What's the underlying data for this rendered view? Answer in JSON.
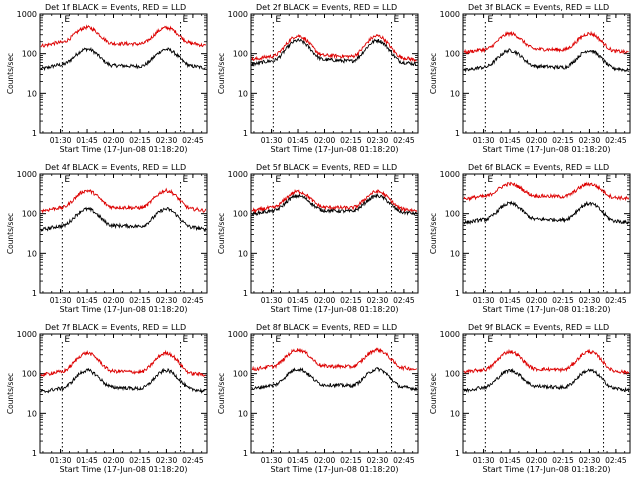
{
  "chart_data": [
    {
      "type": "line",
      "title": "Det 1f BLACK = Events, RED = LLD",
      "xlabel": "Start Time (17-Jun-08 01:18:20)",
      "ylabel": "Counts/sec",
      "x": [
        "01:19",
        "01:30",
        "01:45",
        "02:00",
        "02:15",
        "02:30",
        "02:45",
        "02:52"
      ],
      "ylim": [
        1,
        1000
      ],
      "yscale": "log",
      "series": [
        {
          "color": "#000000",
          "values": [
            42,
            52,
            130,
            50,
            48,
            128,
            48,
            44
          ]
        },
        {
          "color": "#dd0000",
          "values": [
            160,
            190,
            460,
            180,
            175,
            450,
            180,
            160
          ]
        }
      ],
      "markers": {
        "lines_at": [
          "01:31",
          "02:38"
        ],
        "label": "E"
      }
    },
    {
      "type": "line",
      "title": "Det 2f BLACK = Events, RED = LLD",
      "xlabel": "Start Time (17-Jun-08 01:18:20)",
      "ylabel": "Counts/sec",
      "x": [
        "01:19",
        "01:30",
        "01:45",
        "02:00",
        "02:15",
        "02:30",
        "02:45",
        "02:52"
      ],
      "ylim": [
        1,
        1000
      ],
      "yscale": "log",
      "series": [
        {
          "color": "#000000",
          "values": [
            55,
            65,
            215,
            70,
            65,
            215,
            60,
            55
          ]
        },
        {
          "color": "#dd0000",
          "values": [
            72,
            85,
            280,
            90,
            85,
            280,
            78,
            70
          ]
        }
      ],
      "markers": {
        "lines_at": [
          "01:31",
          "02:38"
        ],
        "label": "E"
      }
    },
    {
      "type": "line",
      "title": "Det 3f BLACK = Events, RED = LLD",
      "xlabel": "Start Time (17-Jun-08 01:18:20)",
      "ylabel": "Counts/sec",
      "x": [
        "01:19",
        "01:30",
        "01:45",
        "02:00",
        "02:15",
        "02:30",
        "02:45",
        "02:52"
      ],
      "ylim": [
        1,
        1000
      ],
      "yscale": "log",
      "series": [
        {
          "color": "#000000",
          "values": [
            38,
            45,
            120,
            48,
            45,
            120,
            42,
            38
          ]
        },
        {
          "color": "#dd0000",
          "values": [
            110,
            125,
            320,
            130,
            125,
            320,
            115,
            108
          ]
        }
      ],
      "markers": {
        "lines_at": [
          "01:31",
          "02:38"
        ],
        "label": "E"
      }
    },
    {
      "type": "line",
      "title": "Det 4f BLACK = Events, RED = LLD",
      "xlabel": "Start Time (17-Jun-08 01:18:20)",
      "ylabel": "Counts/sec",
      "x": [
        "01:19",
        "01:30",
        "01:45",
        "02:00",
        "02:15",
        "02:30",
        "02:45",
        "02:52"
      ],
      "ylim": [
        1,
        1000
      ],
      "yscale": "log",
      "series": [
        {
          "color": "#000000",
          "values": [
            40,
            48,
            130,
            50,
            48,
            130,
            45,
            40
          ]
        },
        {
          "color": "#dd0000",
          "values": [
            120,
            140,
            380,
            145,
            140,
            380,
            130,
            120
          ]
        }
      ],
      "markers": {
        "lines_at": [
          "01:31",
          "02:38"
        ],
        "label": "E"
      }
    },
    {
      "type": "line",
      "title": "Det 5f BLACK = Events, RED = LLD",
      "xlabel": "Start Time (17-Jun-08 01:18:20)",
      "ylabel": "Counts/sec",
      "x": [
        "01:19",
        "01:30",
        "01:45",
        "02:00",
        "02:15",
        "02:30",
        "02:45",
        "02:52"
      ],
      "ylim": [
        1,
        1000
      ],
      "yscale": "log",
      "series": [
        {
          "color": "#000000",
          "values": [
            100,
            115,
            280,
            120,
            115,
            280,
            108,
            100
          ]
        },
        {
          "color": "#dd0000",
          "values": [
            120,
            140,
            360,
            145,
            140,
            360,
            130,
            120
          ]
        }
      ],
      "markers": {
        "lines_at": [
          "01:31",
          "02:38"
        ],
        "label": "E"
      }
    },
    {
      "type": "line",
      "title": "Det 6f BLACK = Events, RED = LLD",
      "xlabel": "Start Time (17-Jun-08 01:18:20)",
      "ylabel": "Counts/sec",
      "x": [
        "01:19",
        "01:30",
        "01:45",
        "02:00",
        "02:15",
        "02:30",
        "02:45",
        "02:52"
      ],
      "ylim": [
        1,
        1000
      ],
      "yscale": "log",
      "series": [
        {
          "color": "#000000",
          "values": [
            60,
            70,
            180,
            72,
            70,
            180,
            65,
            60
          ]
        },
        {
          "color": "#dd0000",
          "values": [
            240,
            270,
            560,
            280,
            270,
            560,
            255,
            240
          ]
        }
      ],
      "markers": {
        "lines_at": [
          "01:31",
          "02:38"
        ],
        "label": "E"
      }
    },
    {
      "type": "line",
      "title": "Det 7f BLACK = Events, RED = LLD",
      "xlabel": "Start Time (17-Jun-08 01:18:20)",
      "ylabel": "Counts/sec",
      "x": [
        "01:19",
        "01:30",
        "01:45",
        "02:00",
        "02:15",
        "02:30",
        "02:45",
        "02:52"
      ],
      "ylim": [
        1,
        1000
      ],
      "yscale": "log",
      "series": [
        {
          "color": "#000000",
          "values": [
            35,
            42,
            120,
            45,
            42,
            120,
            40,
            36
          ]
        },
        {
          "color": "#dd0000",
          "values": [
            95,
            110,
            330,
            115,
            110,
            330,
            100,
            95
          ]
        }
      ],
      "markers": {
        "lines_at": [
          "01:31",
          "02:38"
        ],
        "label": "E"
      }
    },
    {
      "type": "line",
      "title": "Det 8f BLACK = Events, RED = LLD",
      "xlabel": "Start Time (17-Jun-08 01:18:20)",
      "ylabel": "Counts/sec",
      "x": [
        "01:19",
        "01:30",
        "01:45",
        "02:00",
        "02:15",
        "02:30",
        "02:45",
        "02:52"
      ],
      "ylim": [
        1,
        1000
      ],
      "yscale": "log",
      "series": [
        {
          "color": "#000000",
          "values": [
            42,
            50,
            130,
            52,
            50,
            130,
            45,
            42
          ]
        },
        {
          "color": "#dd0000",
          "values": [
            130,
            150,
            400,
            155,
            150,
            400,
            140,
            130
          ]
        }
      ],
      "markers": {
        "lines_at": [
          "01:31",
          "02:38"
        ],
        "label": "E"
      }
    },
    {
      "type": "line",
      "title": "Det 9f BLACK = Events, RED = LLD",
      "xlabel": "Start Time (17-Jun-08 01:18:20)",
      "ylabel": "Counts/sec",
      "x": [
        "01:19",
        "01:30",
        "01:45",
        "02:00",
        "02:15",
        "02:30",
        "02:45",
        "02:52"
      ],
      "ylim": [
        1,
        1000
      ],
      "yscale": "log",
      "series": [
        {
          "color": "#000000",
          "values": [
            38,
            45,
            120,
            48,
            45,
            120,
            42,
            38
          ]
        },
        {
          "color": "#dd0000",
          "values": [
            110,
            125,
            360,
            130,
            125,
            360,
            115,
            108
          ]
        }
      ],
      "markers": {
        "lines_at": [
          "01:31",
          "02:38"
        ],
        "label": "E"
      }
    }
  ],
  "axis_common": {
    "xticks": [
      "01:30",
      "01:45",
      "02:00",
      "02:15",
      "02:30",
      "02:45"
    ],
    "yticks": [
      "1",
      "10",
      "100",
      "1000"
    ],
    "x_range": [
      "01:18:20",
      "02:53:00"
    ]
  }
}
